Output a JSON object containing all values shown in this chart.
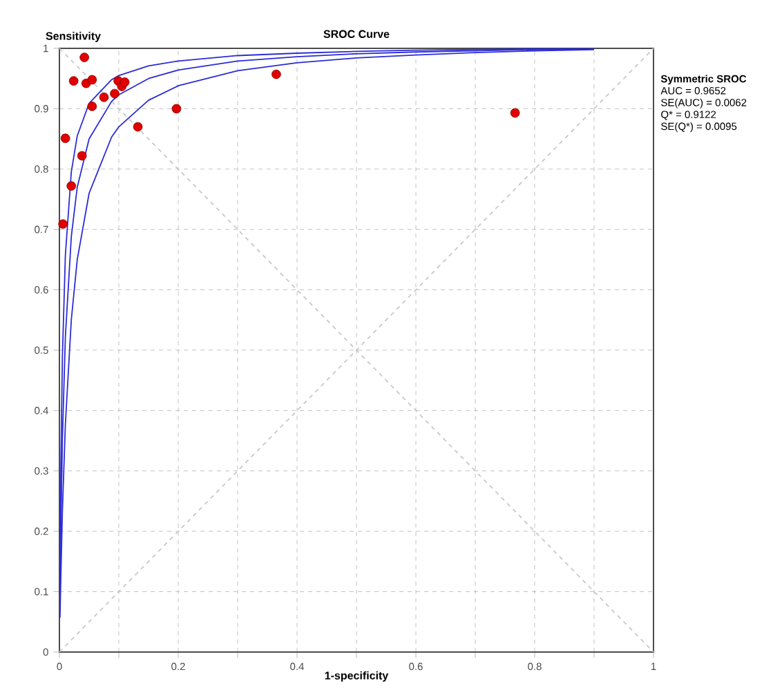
{
  "chart_data": {
    "type": "scatter",
    "title": "SROC Curve",
    "xlabel": "1-specificity",
    "ylabel": "Sensitivity",
    "xlim": [
      0,
      1
    ],
    "ylim": [
      0,
      1
    ],
    "xticks": [
      0,
      {
        "value": 0.1,
        "label": null
      },
      0.2,
      {
        "value": 0.3,
        "label": null
      },
      0.4,
      {
        "value": 0.5,
        "label": null
      },
      0.6,
      {
        "value": 0.7,
        "label": null
      },
      0.8,
      {
        "value": 0.9,
        "label": null
      },
      1
    ],
    "yticks": [
      0,
      0.1,
      0.2,
      0.3,
      0.4,
      0.5,
      0.6,
      0.7,
      0.8,
      0.9,
      1
    ],
    "grid": true,
    "annotations": [
      "Symmetric SROC",
      "AUC = 0.9652",
      "SE(AUC) = 0.0062",
      "Q* = 0.9122",
      "SE(Q*) = 0.0095"
    ],
    "series": [
      {
        "type": "line",
        "color": "#c8c8c8",
        "line_style": "dashed",
        "marker": "none",
        "x": [
          0,
          1
        ],
        "values": [
          0,
          1
        ]
      },
      {
        "type": "line",
        "color": "#c8c8c8",
        "line_style": "dashed",
        "marker": "none",
        "x": [
          0,
          1
        ],
        "values": [
          1,
          0
        ]
      },
      {
        "type": "line",
        "color": "#2b2bd9",
        "line_style": "solid",
        "marker": "none",
        "x": [
          0.001,
          0.002,
          0.005,
          0.01,
          0.02,
          0.03,
          0.05,
          0.0878,
          0.1,
          0.15,
          0.2,
          0.3,
          0.4,
          0.5,
          0.6,
          0.7,
          0.8,
          0.9
        ],
        "values": [
          0.16,
          0.276,
          0.488,
          0.657,
          0.795,
          0.855,
          0.909,
          0.948,
          0.955,
          0.971,
          0.979,
          0.988,
          0.992,
          0.995,
          0.997,
          0.998,
          0.999,
          0.999
        ]
      },
      {
        "type": "line",
        "color": "#2b2bd9",
        "line_style": "solid",
        "marker": "none",
        "x": [
          0.001,
          0.002,
          0.005,
          0.01,
          0.02,
          0.03,
          0.05,
          0.0878,
          0.1,
          0.15,
          0.2,
          0.3,
          0.4,
          0.5,
          0.6,
          0.7,
          0.8,
          0.9
        ],
        "values": [
          0.098,
          0.178,
          0.352,
          0.522,
          0.688,
          0.77,
          0.85,
          0.912,
          0.923,
          0.95,
          0.964,
          0.979,
          0.986,
          0.991,
          0.994,
          0.996,
          0.998,
          0.999
        ]
      },
      {
        "type": "line",
        "color": "#2b2bd9",
        "line_style": "solid",
        "marker": "none",
        "x": [
          0.001,
          0.002,
          0.005,
          0.01,
          0.02,
          0.03,
          0.05,
          0.0878,
          0.1,
          0.15,
          0.2,
          0.3,
          0.4,
          0.5,
          0.6,
          0.7,
          0.8,
          0.9
        ],
        "values": [
          0.057,
          0.107,
          0.232,
          0.377,
          0.55,
          0.65,
          0.76,
          0.853,
          0.87,
          0.914,
          0.938,
          0.963,
          0.976,
          0.984,
          0.989,
          0.993,
          0.996,
          0.998
        ]
      },
      {
        "color": "#e00000",
        "marker": "circle",
        "x": [
          0.042,
          0.024,
          0.045,
          0.055,
          0.055,
          0.075,
          0.093,
          0.099,
          0.105,
          0.11,
          0.132,
          0.197,
          0.01,
          0.038,
          0.02,
          0.006,
          0.365,
          0.767
        ],
        "values": [
          0.985,
          0.946,
          0.942,
          0.948,
          0.904,
          0.919,
          0.925,
          0.946,
          0.937,
          0.944,
          0.87,
          0.9,
          0.851,
          0.822,
          0.772,
          0.709,
          0.957,
          0.893
        ]
      }
    ]
  }
}
